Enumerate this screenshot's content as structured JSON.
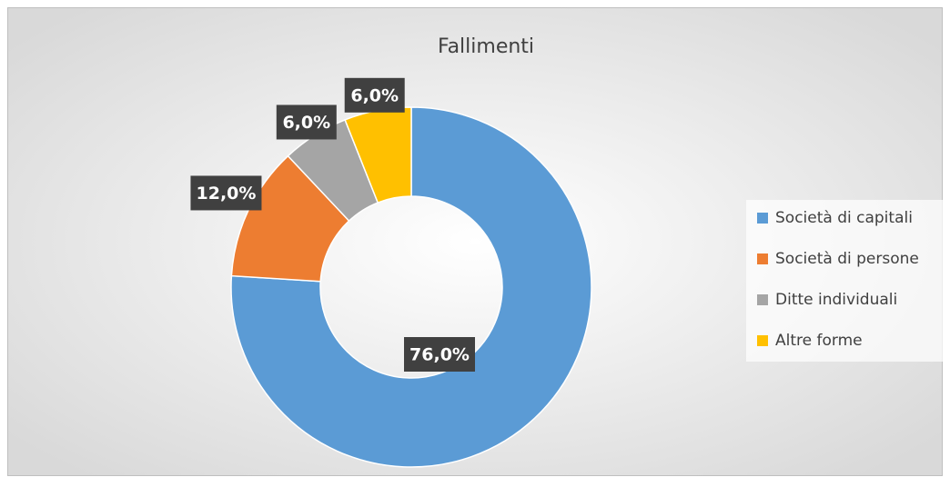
{
  "chart_data": {
    "type": "donut",
    "title": "Fallimenti",
    "categories": [
      "Società di capitali",
      "Società di persone",
      "Ditte individuali",
      "Altre forme"
    ],
    "values": [
      76,
      12,
      6,
      6
    ],
    "value_labels": [
      "76,0%",
      "12,0%",
      "6,0%",
      "6,0%"
    ],
    "colors": [
      "#5b9bd5",
      "#ed7d31",
      "#a5a5a5",
      "#ffc000"
    ],
    "legend": "right"
  }
}
